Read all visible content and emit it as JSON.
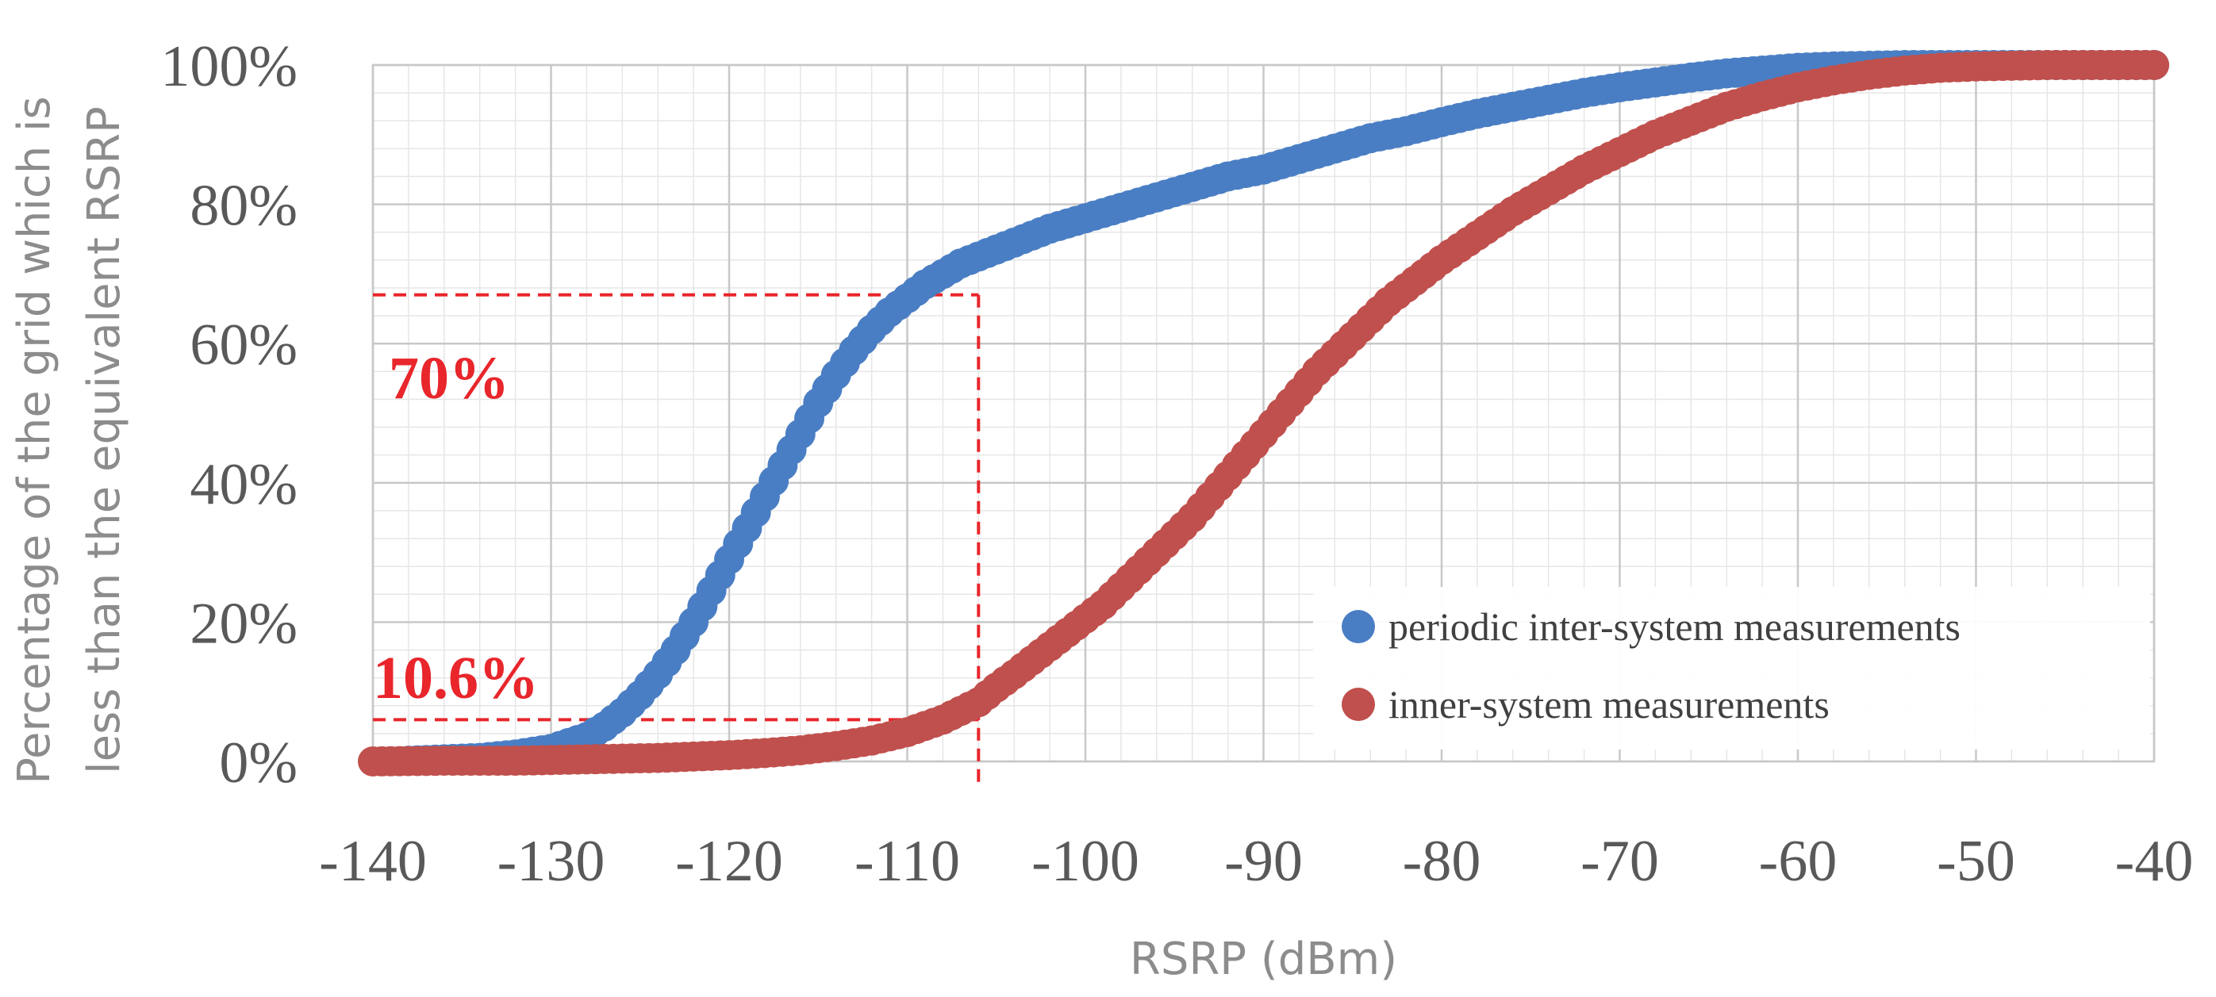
{
  "chart_data": {
    "type": "scatter",
    "title": "",
    "xlabel": "RSRP (dBm)",
    "ylabel_lines": [
      "Percentage of the grid which is",
      "less than the equivalent RSRP"
    ],
    "xlim": [
      -140,
      -40
    ],
    "ylim": [
      0,
      100
    ],
    "x_ticks": [
      -140,
      -130,
      -120,
      -110,
      -100,
      -90,
      -80,
      -70,
      -60,
      -50,
      -40
    ],
    "y_ticks": [
      0,
      20,
      40,
      60,
      80,
      100
    ],
    "x_tick_labels": [
      "-140",
      "-130",
      "-120",
      "-110",
      "-100",
      "-90",
      "-80",
      "-70",
      "-60",
      "-50",
      "-40"
    ],
    "y_tick_labels": [
      "0%",
      "20%",
      "40%",
      "60%",
      "80%",
      "100%"
    ],
    "grid": true,
    "legend_position": "bottom-right",
    "series": [
      {
        "name": "periodic inter-system measurements",
        "color": "#4a7ec4",
        "x": [
          -138,
          -136,
          -134,
          -132,
          -130,
          -128,
          -127,
          -126,
          -125,
          -124,
          -123,
          -122,
          -121,
          -120,
          -119,
          -118,
          -117,
          -116,
          -115,
          -114,
          -113,
          -112,
          -111,
          -110,
          -109,
          -108,
          -107,
          -106,
          -105,
          -104,
          -103,
          -102,
          -100,
          -98,
          -96,
          -94,
          -92,
          -90,
          -88,
          -86,
          -84,
          -82,
          -80,
          -78,
          -76,
          -74,
          -72,
          -70,
          -68,
          -66,
          -64,
          -62,
          -60,
          -58,
          -56,
          -54,
          -52,
          -50,
          -48,
          -46,
          -44,
          -42,
          -40
        ],
        "y": [
          0.1,
          0.3,
          0.5,
          1.0,
          1.8,
          3.5,
          5.0,
          7.0,
          9.5,
          12.5,
          16.0,
          20.0,
          24.5,
          29.0,
          33.5,
          38.0,
          42.5,
          47.0,
          51.5,
          55.5,
          59.0,
          62.0,
          64.5,
          66.5,
          68.5,
          70.0,
          71.5,
          72.5,
          73.5,
          74.5,
          75.5,
          76.5,
          78.0,
          79.5,
          81.0,
          82.5,
          84.0,
          85.0,
          86.5,
          88.0,
          89.5,
          90.5,
          91.8,
          93.0,
          94.0,
          95.0,
          96.0,
          96.8,
          97.5,
          98.2,
          98.8,
          99.2,
          99.6,
          99.8,
          99.9,
          100,
          100,
          100,
          100,
          100,
          100,
          100,
          100
        ]
      },
      {
        "name": "inner-system measurements",
        "color": "#c0504d",
        "x": [
          -140,
          -136,
          -134,
          -132,
          -130,
          -128,
          -126,
          -124,
          -122,
          -120,
          -118,
          -116,
          -114,
          -112,
          -110,
          -108,
          -106,
          -105,
          -104,
          -103,
          -102,
          -101,
          -100,
          -99,
          -98,
          -97,
          -96,
          -95,
          -94,
          -93,
          -92,
          -91,
          -90,
          -89,
          -88,
          -87,
          -86,
          -85,
          -84,
          -83,
          -82,
          -81,
          -80,
          -78,
          -76,
          -74,
          -72,
          -70,
          -68,
          -66,
          -64,
          -62,
          -60,
          -58,
          -56,
          -54,
          -52,
          -50,
          -48,
          -46,
          -44,
          -42,
          -40
        ],
        "y": [
          0.0,
          0.1,
          0.1,
          0.1,
          0.2,
          0.3,
          0.4,
          0.5,
          0.7,
          0.9,
          1.2,
          1.6,
          2.2,
          3.0,
          4.2,
          6.0,
          8.5,
          10.6,
          12.5,
          14.5,
          16.5,
          18.5,
          20.5,
          22.5,
          25.0,
          27.5,
          30.0,
          32.5,
          35.0,
          38.0,
          41.0,
          44.0,
          47.0,
          50.0,
          53.0,
          56.0,
          58.5,
          61.0,
          63.5,
          66.0,
          68.0,
          70.0,
          72.0,
          75.5,
          79.0,
          82.0,
          85.0,
          87.5,
          90.0,
          92.0,
          94.0,
          95.5,
          96.8,
          97.8,
          98.6,
          99.2,
          99.6,
          99.8,
          99.9,
          100,
          100,
          100,
          100
        ]
      }
    ],
    "annotations": [
      {
        "label": "70%",
        "x": -106,
        "y": 67,
        "color": "#e8262b"
      },
      {
        "label": "10.6%",
        "x": -106,
        "y": 6,
        "color": "#e8262b"
      }
    ]
  }
}
